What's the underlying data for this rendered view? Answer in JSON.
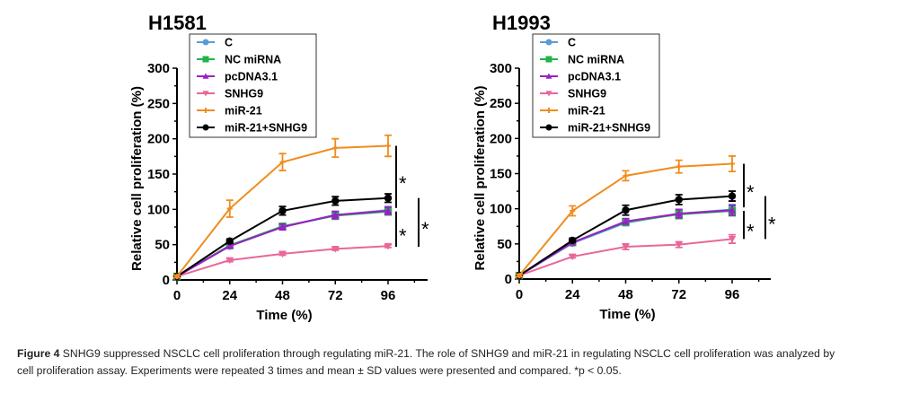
{
  "chart_data": [
    {
      "type": "line",
      "title": "H1581",
      "xlabel": "Time (%)",
      "ylabel": "Relative cell proliferation (%)",
      "xlim": [
        0,
        114
      ],
      "ylim": [
        0,
        300
      ],
      "xticks": [
        0,
        24,
        48,
        72,
        96
      ],
      "yticks": [
        0,
        50,
        100,
        150,
        200,
        250,
        300
      ],
      "legend_position": "top-left",
      "grid": false,
      "x": [
        0,
        24,
        48,
        72,
        96
      ],
      "series": [
        {
          "name": "C",
          "color": "#5b9bd5",
          "marker": "circle",
          "values": [
            5,
            48,
            75,
            92,
            99
          ],
          "errors": [
            2,
            3,
            4,
            5,
            5
          ]
        },
        {
          "name": "NC miRNA",
          "color": "#22b34a",
          "marker": "square",
          "values": [
            5,
            49,
            76,
            91,
            97
          ],
          "errors": [
            2,
            3,
            4,
            5,
            5
          ]
        },
        {
          "name": "pcDNA3.1",
          "color": "#9b1fc9",
          "marker": "triangle-up",
          "values": [
            5,
            48,
            75,
            92,
            98
          ],
          "errors": [
            2,
            3,
            4,
            5,
            5
          ]
        },
        {
          "name": "SNHG9",
          "color": "#e8679a",
          "marker": "triangle-down",
          "values": [
            5,
            28,
            37,
            44,
            48
          ],
          "errors": [
            1,
            2,
            2,
            2,
            2
          ]
        },
        {
          "name": "miR-21",
          "color": "#f08c1e",
          "marker": "plus",
          "values": [
            5,
            101,
            167,
            187,
            190
          ],
          "errors": [
            2,
            12,
            12,
            13,
            15
          ]
        },
        {
          "name": "miR-21+SNHG9",
          "color": "#000000",
          "marker": "circle",
          "values": [
            5,
            55,
            98,
            112,
            116
          ],
          "errors": [
            2,
            3,
            6,
            6,
            6
          ]
        }
      ],
      "significance": [
        {
          "from": 102,
          "to": 190,
          "label": "*",
          "slot": 0
        },
        {
          "from": 47,
          "to": 97,
          "label": "*",
          "slot": 0
        },
        {
          "from": 47,
          "to": 116,
          "label": "*",
          "slot": 1
        }
      ]
    },
    {
      "type": "line",
      "title": "H1993",
      "xlabel": "Time (%)",
      "ylabel": "Relative cell proliferation (%)",
      "xlim": [
        0,
        114
      ],
      "ylim": [
        0,
        300
      ],
      "xticks": [
        0,
        24,
        48,
        72,
        96
      ],
      "yticks": [
        0,
        50,
        100,
        150,
        200,
        250,
        300
      ],
      "legend_position": "top-left",
      "grid": false,
      "x": [
        0,
        24,
        48,
        72,
        96
      ],
      "series": [
        {
          "name": "C",
          "color": "#5b9bd5",
          "marker": "circle",
          "values": [
            5,
            51,
            80,
            93,
            99
          ],
          "errors": [
            2,
            3,
            4,
            6,
            7
          ]
        },
        {
          "name": "NC miRNA",
          "color": "#22b34a",
          "marker": "square",
          "values": [
            5,
            52,
            81,
            92,
            97
          ],
          "errors": [
            2,
            3,
            4,
            6,
            7
          ]
        },
        {
          "name": "pcDNA3.1",
          "color": "#9b1fc9",
          "marker": "triangle-up",
          "values": [
            5,
            52,
            82,
            93,
            98
          ],
          "errors": [
            2,
            3,
            4,
            6,
            7
          ]
        },
        {
          "name": "SNHG9",
          "color": "#e8679a",
          "marker": "triangle-down",
          "values": [
            5,
            32,
            46,
            49,
            57
          ],
          "errors": [
            1,
            2,
            4,
            4,
            6
          ]
        },
        {
          "name": "miR-21",
          "color": "#f08c1e",
          "marker": "plus",
          "values": [
            5,
            97,
            147,
            160,
            164
          ],
          "errors": [
            2,
            7,
            7,
            9,
            11
          ]
        },
        {
          "name": "miR-21+SNHG9",
          "color": "#000000",
          "marker": "circle",
          "values": [
            5,
            55,
            98,
            113,
            118
          ],
          "errors": [
            2,
            3,
            7,
            7,
            7
          ]
        }
      ],
      "significance": [
        {
          "from": 102,
          "to": 164,
          "label": "*",
          "slot": 0
        },
        {
          "from": 57,
          "to": 97,
          "label": "*",
          "slot": 0
        },
        {
          "from": 57,
          "to": 118,
          "label": "*",
          "slot": 1
        }
      ]
    }
  ],
  "caption": {
    "label": "Figure 4",
    "line1": " SNHG9 suppressed NSCLC cell proliferation through regulating miR-21. The role of SNHG9 and miR-21 in regulating NSCLC cell proliferation was analyzed by",
    "line2": "cell proliferation assay. Experiments were repeated 3 times and mean ± SD values were presented and compared. *p < 0.05."
  }
}
